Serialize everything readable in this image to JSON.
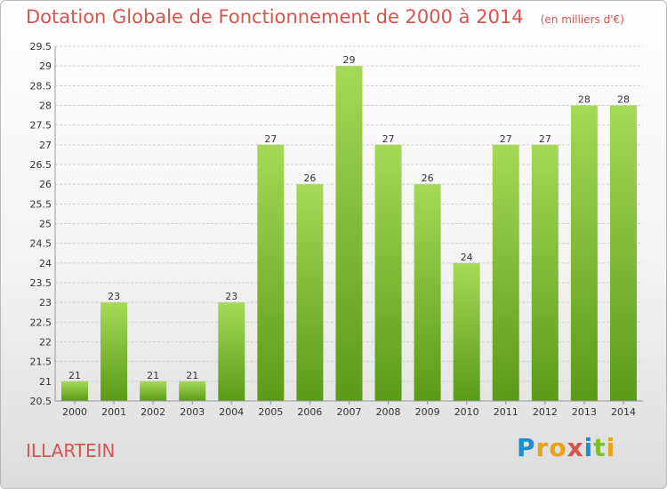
{
  "chart_data": {
    "type": "bar",
    "title": "Dotation Globale de Fonctionnement de 2000 à 2014",
    "subtitle": "(en milliers d'€)",
    "categories": [
      "2000",
      "2001",
      "2002",
      "2003",
      "2004",
      "2005",
      "2006",
      "2007",
      "2008",
      "2009",
      "2010",
      "2011",
      "2012",
      "2013",
      "2014"
    ],
    "values": [
      21,
      23,
      21,
      21,
      23,
      27,
      26,
      29,
      27,
      26,
      24,
      27,
      27,
      28,
      28
    ],
    "ylim": [
      20.5,
      29.5
    ],
    "yticks": [
      "20.5",
      "21",
      "21.5",
      "22",
      "22.5",
      "23",
      "23.5",
      "24",
      "24.5",
      "25",
      "25.5",
      "26",
      "26.5",
      "27",
      "27.5",
      "28",
      "28.5",
      "29",
      "29.5"
    ],
    "grid": true,
    "bar_color": "#7cbf2f",
    "bar_color_light": "#a6d957",
    "bar_color_dark": "#5a9a1a"
  },
  "commune": "ILLARTEIN",
  "logo": {
    "letters": [
      "P",
      "r",
      "o",
      "x",
      "i",
      "t",
      "i"
    ],
    "colors": [
      "#1f8fd0",
      "#e8a317",
      "#e8a317",
      "#d9534f",
      "#1f8fd0",
      "#7cbf2f",
      "#e8a317"
    ]
  },
  "title_color": "#d9534f"
}
